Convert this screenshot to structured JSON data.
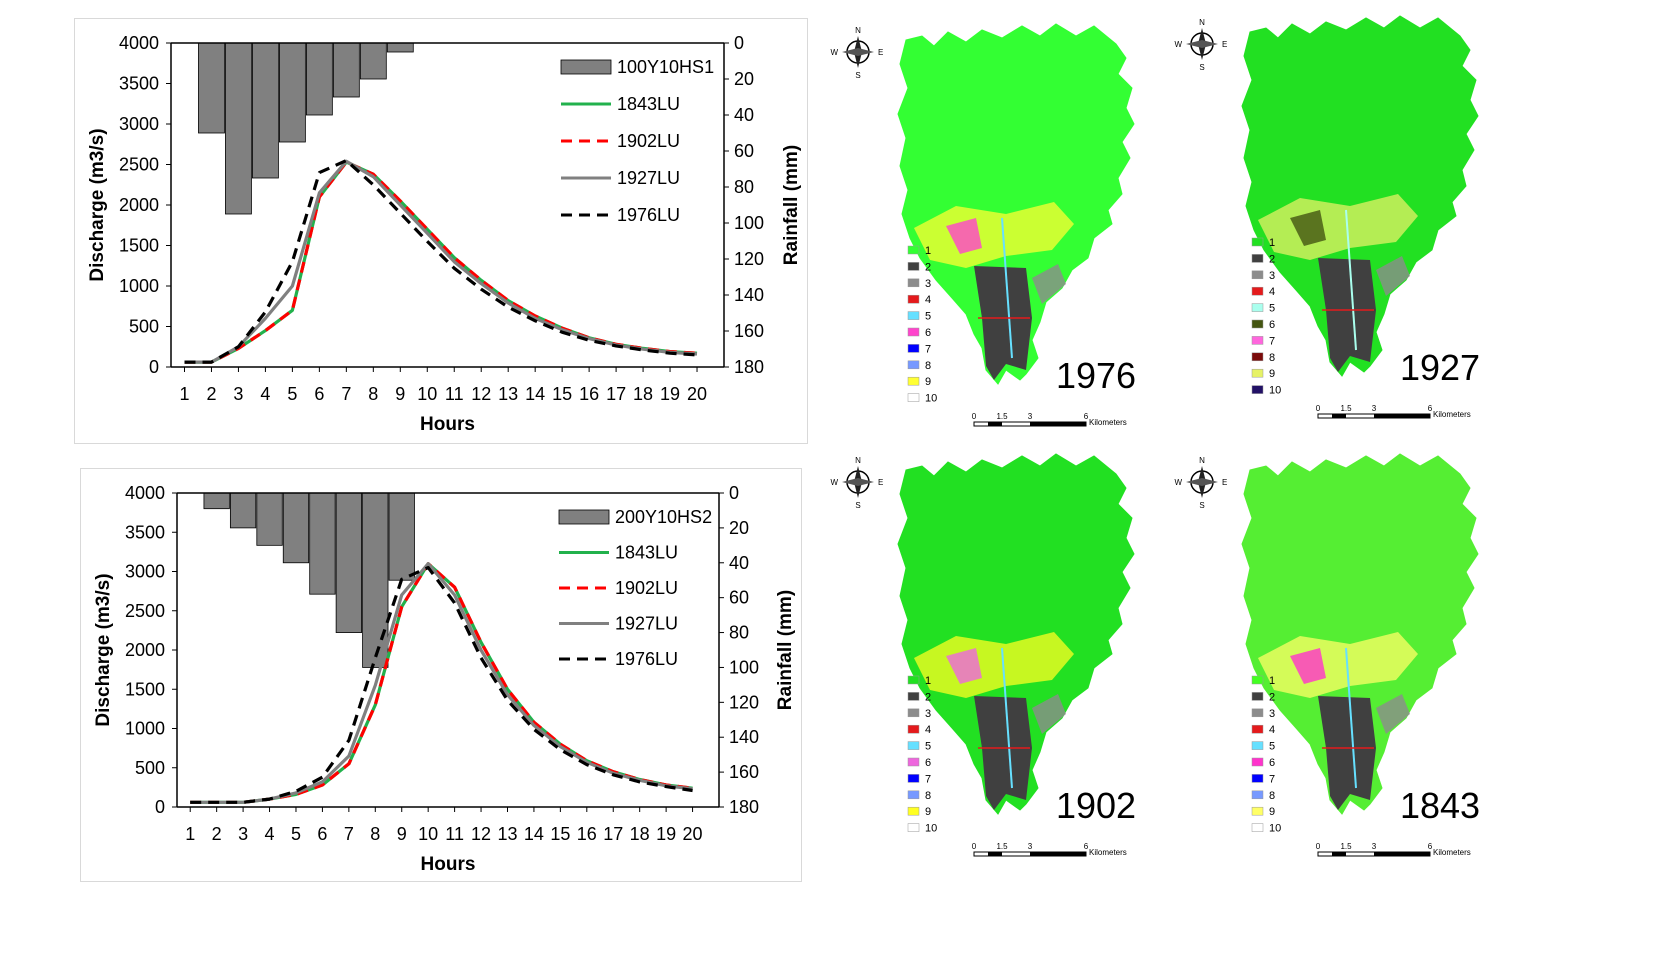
{
  "chart_data": [
    {
      "type": "line",
      "categories": [
        "1",
        "2",
        "3",
        "4",
        "5",
        "6",
        "7",
        "8",
        "9",
        "10",
        "11",
        "12",
        "13",
        "14",
        "15",
        "16",
        "17",
        "18",
        "19",
        "20"
      ],
      "xlabel": "Hours",
      "ylabel": "Discharge (m3/s)",
      "y2label": "Rainfall (mm)",
      "ylim": [
        0,
        4000
      ],
      "yticks": [
        "0",
        "500",
        "1000",
        "1500",
        "2000",
        "2500",
        "3000",
        "3500",
        "4000"
      ],
      "y2lim": [
        0,
        180
      ],
      "y2ticks": [
        "0",
        "20",
        "40",
        "60",
        "80",
        "100",
        "120",
        "140",
        "160",
        "180"
      ],
      "y2_inverted": true,
      "legend_position": "top-right",
      "bars": {
        "name": "100Y10HS1",
        "color": "#808080",
        "values": [
          0,
          50,
          95,
          75,
          55,
          40,
          30,
          20,
          5,
          0,
          0,
          0,
          0,
          0,
          0,
          0,
          0,
          0,
          0,
          0
        ]
      },
      "series": [
        {
          "name": "1843LU",
          "color": "#22b14c",
          "dash": "solid",
          "values": [
            60,
            60,
            230,
            450,
            700,
            2100,
            2530,
            2380,
            2050,
            1700,
            1350,
            1070,
            820,
            630,
            480,
            360,
            280,
            230,
            190,
            170
          ]
        },
        {
          "name": "1902LU",
          "color": "#ff0000",
          "dash": "dashed",
          "values": [
            60,
            60,
            230,
            450,
            700,
            2100,
            2530,
            2380,
            2050,
            1700,
            1350,
            1070,
            820,
            630,
            480,
            360,
            280,
            230,
            190,
            170
          ]
        },
        {
          "name": "1927LU",
          "color": "#808080",
          "dash": "solid",
          "values": [
            60,
            60,
            250,
            600,
            1000,
            2150,
            2540,
            2350,
            2000,
            1650,
            1300,
            1030,
            790,
            600,
            460,
            350,
            270,
            220,
            180,
            160
          ]
        },
        {
          "name": "1976LU",
          "color": "#000000",
          "dash": "dashed",
          "values": [
            60,
            60,
            250,
            680,
            1300,
            2400,
            2550,
            2250,
            1900,
            1550,
            1220,
            960,
            740,
            570,
            430,
            330,
            260,
            210,
            170,
            150
          ]
        }
      ]
    },
    {
      "type": "line",
      "categories": [
        "1",
        "2",
        "3",
        "4",
        "5",
        "6",
        "7",
        "8",
        "9",
        "10",
        "11",
        "12",
        "13",
        "14",
        "15",
        "16",
        "17",
        "18",
        "19",
        "20"
      ],
      "xlabel": "Hours",
      "ylabel": "Discharge (m3/s)",
      "y2label": "Rainfall (mm)",
      "ylim": [
        0,
        4000
      ],
      "yticks": [
        "0",
        "500",
        "1000",
        "1500",
        "2000",
        "2500",
        "3000",
        "3500",
        "4000"
      ],
      "y2lim": [
        0,
        180
      ],
      "y2ticks": [
        "0",
        "20",
        "40",
        "60",
        "80",
        "100",
        "120",
        "140",
        "160",
        "180"
      ],
      "y2_inverted": true,
      "legend_position": "top-right",
      "bars": {
        "name": "200Y10HS2",
        "color": "#808080",
        "values": [
          0,
          9,
          20,
          30,
          40,
          58,
          80,
          100,
          50,
          0,
          0,
          0,
          0,
          0,
          0,
          0,
          0,
          0,
          0,
          0
        ]
      },
      "series": [
        {
          "name": "1843LU",
          "color": "#22b14c",
          "dash": "solid",
          "values": [
            60,
            60,
            60,
            100,
            160,
            280,
            550,
            1300,
            2550,
            3100,
            2800,
            2100,
            1500,
            1080,
            800,
            590,
            450,
            350,
            280,
            240
          ]
        },
        {
          "name": "1902LU",
          "color": "#ff0000",
          "dash": "dashed",
          "values": [
            60,
            60,
            60,
            100,
            160,
            280,
            550,
            1300,
            2550,
            3100,
            2800,
            2100,
            1500,
            1080,
            800,
            590,
            450,
            350,
            280,
            240
          ]
        },
        {
          "name": "1927LU",
          "color": "#808080",
          "dash": "solid",
          "values": [
            60,
            60,
            60,
            100,
            180,
            320,
            650,
            1550,
            2700,
            3100,
            2700,
            2000,
            1430,
            1040,
            770,
            570,
            430,
            340,
            270,
            230
          ]
        },
        {
          "name": "1976LU",
          "color": "#000000",
          "dash": "dashed",
          "values": [
            60,
            60,
            60,
            100,
            200,
            380,
            850,
            1900,
            2900,
            3050,
            2600,
            1900,
            1360,
            990,
            730,
            540,
            410,
            320,
            260,
            210
          ]
        }
      ]
    }
  ],
  "maps": [
    {
      "year": "1976",
      "legend": [
        "1",
        "2",
        "3",
        "4",
        "5",
        "6",
        "7",
        "8",
        "9",
        "10"
      ],
      "legend_colors": [
        "#33ff33",
        "#404040",
        "#8c8c8c",
        "#e41a1c",
        "#66e0ff",
        "#ff44cc",
        "#0000ff",
        "#7799ff",
        "#ffff33",
        "#ffffff"
      ],
      "main_color": "#33ff33",
      "scale_labels": [
        "0",
        "1.5",
        "3",
        "6"
      ],
      "scale_unit": "Kilometers"
    },
    {
      "year": "1927",
      "legend": [
        "1",
        "2",
        "3",
        "4",
        "5",
        "6",
        "7",
        "8",
        "9",
        "10"
      ],
      "legend_colors": [
        "#22e022",
        "#404040",
        "#8c8c8c",
        "#e41a1c",
        "#aaffee",
        "#445511",
        "#ff66dd",
        "#7a0a0a",
        "#e6f266",
        "#221166"
      ],
      "main_color": "#22e022",
      "scale_labels": [
        "0",
        "1.5",
        "3",
        "6"
      ],
      "scale_unit": "Kilometers"
    },
    {
      "year": "1902",
      "legend": [
        "1",
        "2",
        "3",
        "4",
        "5",
        "6",
        "7",
        "8",
        "9",
        "10"
      ],
      "legend_colors": [
        "#22e022",
        "#404040",
        "#8c8c8c",
        "#e41a1c",
        "#66e0ff",
        "#ee66dd",
        "#0000ff",
        "#7799ff",
        "#ffff22",
        "#ffffff"
      ],
      "main_color": "#22e022",
      "scale_labels": [
        "0",
        "1.5",
        "3",
        "6"
      ],
      "scale_unit": "Kilometers"
    },
    {
      "year": "1843",
      "legend": [
        "1",
        "2",
        "3",
        "4",
        "5",
        "6",
        "7",
        "8",
        "9",
        "10"
      ],
      "legend_colors": [
        "#44ff22",
        "#404040",
        "#8c8c8c",
        "#e41a1c",
        "#66e0ff",
        "#ff33cc",
        "#0000ff",
        "#7799ff",
        "#ffff66",
        "#ffffff"
      ],
      "main_color": "#55ee33",
      "scale_labels": [
        "0",
        "1.5",
        "3",
        "6"
      ],
      "scale_unit": "Kilometers"
    }
  ],
  "compass": {
    "n": "N",
    "s": "S",
    "e": "E",
    "w": "W"
  }
}
